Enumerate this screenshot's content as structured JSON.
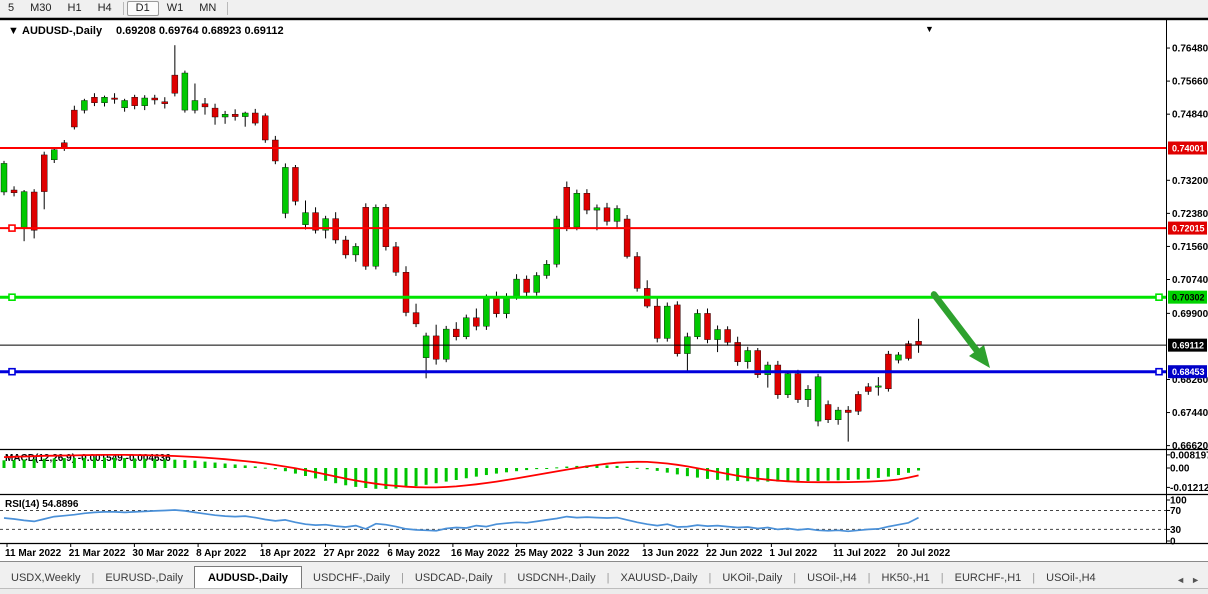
{
  "toolbar": {
    "buttons": [
      "5",
      "M30",
      "H1",
      "H4",
      "D1",
      "W1",
      "MN"
    ],
    "active": "D1",
    "dividers_after": [
      "H4",
      "MN"
    ]
  },
  "chart": {
    "menu_arrow": "▼",
    "symbol_label": "AUDUSD-,Daily",
    "ohlc_text": "0.69208 0.69764 0.68923 0.69112",
    "top_marker": "▼"
  },
  "chart_data": {
    "type": "candlestick",
    "symbol": "AUDUSD-",
    "timeframe": "Daily",
    "title": "AUDUSD-,Daily",
    "last_candle": {
      "open": 0.69208,
      "high": 0.69764,
      "low": 0.68923,
      "close": 0.69112
    },
    "price_axis": {
      "visible_min": 0.6654,
      "visible_max": 0.7691,
      "ticks": [
        "0.76480",
        "0.75660",
        "0.74840",
        "0.73200",
        "0.72380",
        "0.71560",
        "0.70740",
        "0.69900",
        "0.68260",
        "0.67440",
        "0.66620"
      ]
    },
    "price_badges": [
      {
        "label": "0.74001",
        "price": 0.74001,
        "bg": "#e00000",
        "fg": "#ffffff"
      },
      {
        "label": "0.72015",
        "price": 0.72015,
        "bg": "#e00000",
        "fg": "#ffffff"
      },
      {
        "label": "0.70302",
        "price": 0.70302,
        "bg": "#00d300",
        "fg": "#000000"
      },
      {
        "label": "0.69112",
        "price": 0.69112,
        "bg": "#000000",
        "fg": "#ffffff"
      },
      {
        "label": "0.68453",
        "price": 0.68453,
        "bg": "#0000c8",
        "fg": "#ffffff"
      }
    ],
    "levels": [
      {
        "price": 0.74001,
        "color": "#ff0000",
        "width": 2,
        "handles": []
      },
      {
        "price": 0.72015,
        "color": "#ff0000",
        "width": 2,
        "handles": [
          "left"
        ]
      },
      {
        "price": 0.70302,
        "color": "#00e400",
        "width": 3,
        "handles": [
          "left",
          "right"
        ]
      },
      {
        "price": 0.69112,
        "color": "#000000",
        "width": 1,
        "handles": []
      },
      {
        "price": 0.68453,
        "color": "#0000dc",
        "width": 3,
        "handles": [
          "left",
          "right"
        ]
      }
    ],
    "colors": {
      "bull": "#00c800",
      "bear": "#de0000",
      "wick": "#000000"
    },
    "candles": [
      [
        0.7291,
        0.7368,
        0.7283,
        0.7362
      ],
      [
        0.7296,
        0.7305,
        0.728,
        0.7289
      ],
      [
        0.7202,
        0.7296,
        0.7169,
        0.7292
      ],
      [
        0.7291,
        0.7298,
        0.7176,
        0.7196
      ],
      [
        0.7383,
        0.7391,
        0.7248,
        0.7292
      ],
      [
        0.7371,
        0.7401,
        0.7363,
        0.7396
      ],
      [
        0.7413,
        0.742,
        0.7393,
        0.7401
      ],
      [
        0.7494,
        0.7505,
        0.7446,
        0.7452
      ],
      [
        0.7494,
        0.7522,
        0.7486,
        0.7518
      ],
      [
        0.7526,
        0.7536,
        0.7504,
        0.7512
      ],
      [
        0.7512,
        0.753,
        0.7503,
        0.7526
      ],
      [
        0.7524,
        0.7536,
        0.751,
        0.7521
      ],
      [
        0.75,
        0.7522,
        0.749,
        0.7518
      ],
      [
        0.7526,
        0.7532,
        0.7496,
        0.7505
      ],
      [
        0.7505,
        0.7531,
        0.7494,
        0.7524
      ],
      [
        0.7524,
        0.7532,
        0.7508,
        0.7519
      ],
      [
        0.7515,
        0.7526,
        0.7498,
        0.751
      ],
      [
        0.7581,
        0.7655,
        0.7528,
        0.7536
      ],
      [
        0.7494,
        0.7592,
        0.7488,
        0.7586
      ],
      [
        0.7494,
        0.756,
        0.7486,
        0.7518
      ],
      [
        0.751,
        0.7524,
        0.7483,
        0.7502
      ],
      [
        0.7499,
        0.751,
        0.7458,
        0.7477
      ],
      [
        0.7477,
        0.7492,
        0.746,
        0.7484
      ],
      [
        0.7484,
        0.7496,
        0.7468,
        0.7478
      ],
      [
        0.7478,
        0.749,
        0.7453,
        0.7487
      ],
      [
        0.7487,
        0.7497,
        0.7456,
        0.7462
      ],
      [
        0.748,
        0.7486,
        0.7413,
        0.742
      ],
      [
        0.742,
        0.743,
        0.736,
        0.7368
      ],
      [
        0.7238,
        0.7362,
        0.7226,
        0.7352
      ],
      [
        0.7352,
        0.7358,
        0.7258,
        0.7268
      ],
      [
        0.721,
        0.727,
        0.7198,
        0.724
      ],
      [
        0.724,
        0.7253,
        0.7188,
        0.7196
      ],
      [
        0.7196,
        0.7232,
        0.7176,
        0.7225
      ],
      [
        0.7225,
        0.7241,
        0.7163,
        0.7172
      ],
      [
        0.7172,
        0.7182,
        0.7126,
        0.7135
      ],
      [
        0.7135,
        0.7164,
        0.7118,
        0.7156
      ],
      [
        0.7253,
        0.7263,
        0.7098,
        0.7107
      ],
      [
        0.7107,
        0.726,
        0.7099,
        0.7253
      ],
      [
        0.7253,
        0.7261,
        0.7146,
        0.7155
      ],
      [
        0.7155,
        0.7167,
        0.7083,
        0.7092
      ],
      [
        0.7092,
        0.7107,
        0.6983,
        0.6992
      ],
      [
        0.6992,
        0.7014,
        0.6956,
        0.6964
      ],
      [
        0.688,
        0.6942,
        0.6829,
        0.6934
      ],
      [
        0.6934,
        0.6962,
        0.6863,
        0.6876
      ],
      [
        0.6876,
        0.6959,
        0.6869,
        0.6951
      ],
      [
        0.6951,
        0.6968,
        0.6923,
        0.6932
      ],
      [
        0.6932,
        0.6987,
        0.6926,
        0.6979
      ],
      [
        0.6979,
        0.7002,
        0.6948,
        0.6958
      ],
      [
        0.6958,
        0.7037,
        0.6949,
        0.7028
      ],
      [
        0.7028,
        0.7044,
        0.698,
        0.6989
      ],
      [
        0.6989,
        0.704,
        0.6978,
        0.7032
      ],
      [
        0.7032,
        0.7087,
        0.7024,
        0.7075
      ],
      [
        0.7075,
        0.7084,
        0.7033,
        0.7042
      ],
      [
        0.7042,
        0.7092,
        0.7034,
        0.7084
      ],
      [
        0.7084,
        0.7122,
        0.7076,
        0.7112
      ],
      [
        0.7112,
        0.7232,
        0.7104,
        0.7224
      ],
      [
        0.7303,
        0.7317,
        0.7194,
        0.7204
      ],
      [
        0.7204,
        0.7297,
        0.7196,
        0.7288
      ],
      [
        0.7288,
        0.7298,
        0.7236,
        0.7246
      ],
      [
        0.7246,
        0.726,
        0.7196,
        0.7252
      ],
      [
        0.7252,
        0.7264,
        0.7208,
        0.7218
      ],
      [
        0.7218,
        0.7258,
        0.7203,
        0.725
      ],
      [
        0.7224,
        0.7234,
        0.7126,
        0.7131
      ],
      [
        0.7131,
        0.7142,
        0.7044,
        0.7052
      ],
      [
        0.7052,
        0.7072,
        0.7003,
        0.7008
      ],
      [
        0.7008,
        0.7032,
        0.6918,
        0.6928
      ],
      [
        0.6928,
        0.7017,
        0.692,
        0.7008
      ],
      [
        0.7011,
        0.702,
        0.6883,
        0.689
      ],
      [
        0.689,
        0.6942,
        0.6848,
        0.6932
      ],
      [
        0.6932,
        0.7,
        0.6926,
        0.699
      ],
      [
        0.699,
        0.7002,
        0.6916,
        0.6925
      ],
      [
        0.6925,
        0.696,
        0.6894,
        0.695
      ],
      [
        0.695,
        0.6958,
        0.691,
        0.6918
      ],
      [
        0.6918,
        0.6932,
        0.686,
        0.687
      ],
      [
        0.687,
        0.6907,
        0.6853,
        0.6898
      ],
      [
        0.6898,
        0.6904,
        0.683,
        0.6838
      ],
      [
        0.6838,
        0.687,
        0.6806,
        0.6862
      ],
      [
        0.6862,
        0.6872,
        0.6778,
        0.6788
      ],
      [
        0.6788,
        0.6847,
        0.678,
        0.684
      ],
      [
        0.684,
        0.685,
        0.6768,
        0.6776
      ],
      [
        0.6776,
        0.6812,
        0.6758,
        0.6802
      ],
      [
        0.6723,
        0.684,
        0.671,
        0.6833
      ],
      [
        0.6764,
        0.6774,
        0.6718,
        0.6726
      ],
      [
        0.6726,
        0.6758,
        0.6714,
        0.675
      ],
      [
        0.675,
        0.676,
        0.6672,
        0.6744
      ],
      [
        0.6789,
        0.6797,
        0.6738,
        0.6747
      ],
      [
        0.6808,
        0.6817,
        0.6788,
        0.6796
      ],
      [
        0.6808,
        0.6832,
        0.6786,
        0.681
      ],
      [
        0.6889,
        0.6897,
        0.6796,
        0.6803
      ],
      [
        0.6874,
        0.6894,
        0.6866,
        0.6887
      ],
      [
        0.6915,
        0.6922,
        0.6873,
        0.6878
      ],
      [
        0.69208,
        0.69764,
        0.68923,
        0.69112
      ]
    ],
    "x_axis_dates": [
      "11 Mar 2022",
      "21 Mar 2022",
      "30 Mar 2022",
      "8 Apr 2022",
      "18 Apr 2022",
      "27 Apr 2022",
      "6 May 2022",
      "16 May 2022",
      "25 May 2022",
      "3 Jun 2022",
      "13 Jun 2022",
      "22 Jun 2022",
      "1 Jul 2022",
      "11 Jul 2022",
      "20 Jul 2022"
    ],
    "indicators": {
      "macd": {
        "label": "MACD(12,26,9)",
        "values_text": "-0.001549 -0.004636",
        "main": -0.001549,
        "signal": -0.004636,
        "axis_ticks": [
          "0.008197",
          "0.00",
          "-0.012121"
        ],
        "colors": {
          "histogram": "#00c400",
          "signal": "#ff0000"
        },
        "histogram": [
          0.0048,
          0.005,
          0.0053,
          0.0056,
          0.0058,
          0.006,
          0.0062,
          0.0063,
          0.0064,
          0.0065,
          0.0065,
          0.0064,
          0.0062,
          0.006,
          0.0058,
          0.0056,
          0.0054,
          0.0052,
          0.005,
          0.0046,
          0.004,
          0.0034,
          0.0028,
          0.0022,
          0.0016,
          0.001,
          0.0002,
          -0.0008,
          -0.002,
          -0.0035,
          -0.005,
          -0.0065,
          -0.008,
          -0.0095,
          -0.0108,
          -0.0118,
          -0.0125,
          -0.013,
          -0.0131,
          -0.0128,
          -0.0122,
          -0.0114,
          -0.0105,
          -0.0095,
          -0.0085,
          -0.0075,
          -0.0064,
          -0.0054,
          -0.0044,
          -0.0035,
          -0.0027,
          -0.002,
          -0.0013,
          -0.0007,
          -0.0001,
          0.0004,
          0.0009,
          0.0013,
          0.0016,
          0.0017,
          0.0016,
          0.0013,
          0.0008,
          0.0001,
          -0.0008,
          -0.0018,
          -0.0029,
          -0.004,
          -0.0051,
          -0.006,
          -0.0068,
          -0.0074,
          -0.0078,
          -0.0081,
          -0.0083,
          -0.0084,
          -0.0085,
          -0.0085,
          -0.0084,
          -0.0083,
          -0.0082,
          -0.0081,
          -0.0079,
          -0.0077,
          -0.0075,
          -0.0072,
          -0.0068,
          -0.0062,
          -0.0054,
          -0.0044,
          -0.003,
          -0.001549
        ],
        "signal_line": [
          0.0068,
          0.007,
          0.0072,
          0.0074,
          0.0076,
          0.0077,
          0.0078,
          0.0079,
          0.008,
          0.0081,
          0.0082,
          0.0082,
          0.0082,
          0.0081,
          0.008,
          0.0079,
          0.0077,
          0.0075,
          0.0072,
          0.0069,
          0.0065,
          0.006,
          0.0055,
          0.0049,
          0.0043,
          0.0036,
          0.0028,
          0.0019,
          0.0009,
          -0.0002,
          -0.0014,
          -0.0027,
          -0.004,
          -0.0053,
          -0.0066,
          -0.0078,
          -0.0089,
          -0.0098,
          -0.0106,
          -0.0112,
          -0.0117,
          -0.012,
          -0.0121,
          -0.0121,
          -0.0119,
          -0.0115,
          -0.0109,
          -0.0102,
          -0.0094,
          -0.0085,
          -0.0075,
          -0.0065,
          -0.0054,
          -0.0043,
          -0.0032,
          -0.0021,
          -0.001,
          0.0,
          0.001,
          0.0019,
          0.0027,
          0.0033,
          0.0037,
          0.0039,
          0.0038,
          0.0034,
          0.0028,
          0.002,
          0.001,
          -0.0001,
          -0.0013,
          -0.0025,
          -0.0037,
          -0.0048,
          -0.0058,
          -0.0066,
          -0.0073,
          -0.0079,
          -0.0083,
          -0.0086,
          -0.0088,
          -0.0089,
          -0.0089,
          -0.0089,
          -0.0088,
          -0.0087,
          -0.0085,
          -0.0082,
          -0.0078,
          -0.0072,
          -0.006,
          -0.004636
        ]
      },
      "rsi": {
        "label": "RSI(14)",
        "value_text": "54.8896",
        "value": 54.8896,
        "axis_ticks": [
          "100",
          "70",
          "30",
          "0"
        ],
        "levels": [
          70,
          30
        ],
        "color": "#4a90d8",
        "values": [
          54,
          52,
          49,
          47,
          52,
          57,
          59,
          61,
          64,
          66,
          67,
          67,
          66,
          67,
          68,
          69,
          70,
          71,
          69,
          66,
          63,
          60,
          58,
          57,
          58,
          55,
          51,
          48,
          50,
          45,
          41,
          39,
          40,
          37,
          35,
          38,
          31,
          42,
          40,
          36,
          31,
          29,
          28,
          27,
          32,
          34,
          33,
          38,
          36,
          41,
          43,
          45,
          44,
          47,
          50,
          53,
          57,
          55,
          56,
          55,
          54,
          55,
          50,
          45,
          41,
          38,
          41,
          35,
          36,
          39,
          37,
          38,
          36,
          34,
          35,
          32,
          34,
          30,
          32,
          29,
          31,
          28,
          27,
          28,
          26,
          28,
          30,
          31,
          36,
          40,
          44,
          54.8896
        ]
      }
    },
    "annotations": {
      "arrow": {
        "color": "#2ea12e",
        "from_price": 0.7037,
        "to_price": 0.6855,
        "direction": "down-right"
      }
    }
  },
  "tabs": {
    "items": [
      "USDX,Weekly",
      "EURUSD-,Daily",
      "AUDUSD-,Daily",
      "USDCHF-,Daily",
      "USDCAD-,Daily",
      "USDCNH-,Daily",
      "XAUUSD-,Daily",
      "UKOil-,Daily",
      "USOil-,H4",
      "HK50-,H1",
      "EURCHF-,H1",
      "USOil-,H4"
    ],
    "active_index": 2,
    "scroll_left": "◄",
    "scroll_right": "►"
  }
}
